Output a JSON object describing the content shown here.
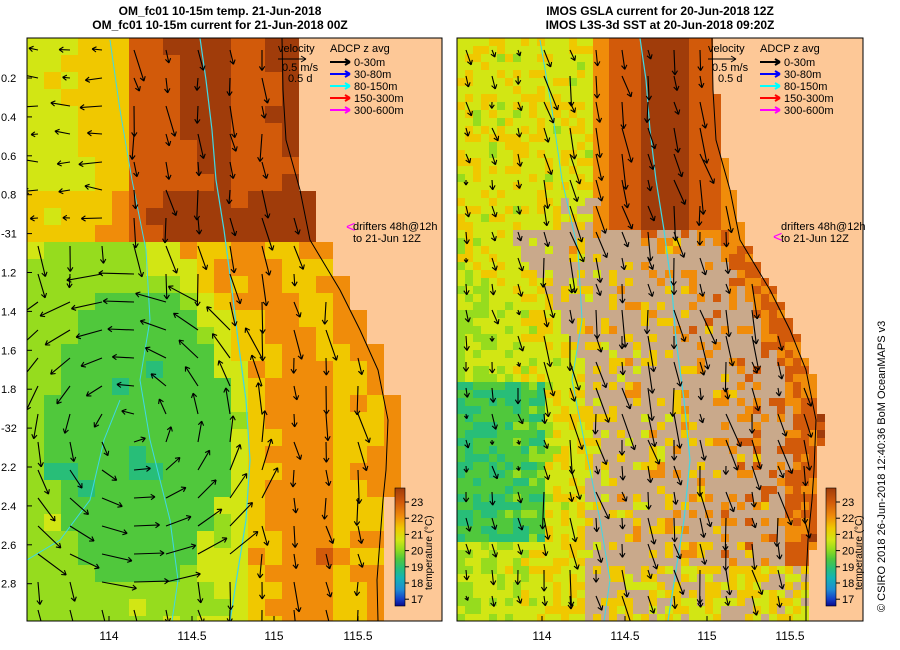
{
  "left_panel": {
    "title_lines": [
      "OM_fc01 10-15m temp. 21-Jun-2018",
      "OM_fc01 10-15m current for 21-Jun-2018 00Z"
    ],
    "legend": {
      "velocity_title": "velocity",
      "velocity_scale": "0.5 m/s",
      "velocity_time": "0.5 d",
      "adcp_title": "ADCP z avg",
      "adcp_items": [
        {
          "label": "0-30m",
          "color": "#000000"
        },
        {
          "label": "30-80m",
          "color": "#0000ff"
        },
        {
          "label": "80-150m",
          "color": "#00ffff"
        },
        {
          "label": "150-300m",
          "color": "#ff0000"
        },
        {
          "label": "300-600m",
          "color": "#ff00ff"
        }
      ],
      "drifters_line1": "drifters 48h@12h",
      "drifters_line2": "to 21-Jun 12Z",
      "drifters_color": "#ff00ff"
    },
    "colorbar": {
      "label": "temperature (°C)",
      "ticks": [
        "23",
        "22",
        "21",
        "20",
        "19",
        "18",
        "17"
      ]
    }
  },
  "right_panel": {
    "title_lines": [
      "IMOS GSLA current for 20-Jun-2018 12Z",
      "IMOS L3S-3d SST at 20-Jun-2018 09:20Z"
    ],
    "legend": {
      "velocity_title": "velocity",
      "velocity_scale": "0.5 m/s",
      "velocity_time": "0.5 d",
      "adcp_title": "ADCP z avg",
      "adcp_items": [
        {
          "label": "0-30m",
          "color": "#000000"
        },
        {
          "label": "30-80m",
          "color": "#0000ff"
        },
        {
          "label": "80-150m",
          "color": "#00ffff"
        },
        {
          "label": "150-300m",
          "color": "#ff0000"
        },
        {
          "label": "300-600m",
          "color": "#ff00ff"
        }
      ],
      "drifters_line1": "drifters 48h@12h",
      "drifters_line2": "to 21-Jun 12Z",
      "drifters_color": "#ff00ff"
    },
    "colorbar": {
      "label": "temperature (°C)",
      "ticks": [
        "23",
        "22",
        "21",
        "20",
        "19",
        "18",
        "17"
      ]
    }
  },
  "y_axis_labels": [
    "0.2",
    "0.4",
    "0.6",
    "0.8",
    "-31",
    "1.2",
    "1.4",
    "1.6",
    "1.8",
    "-32",
    "2.2",
    "2.4",
    "2.6",
    "2.8"
  ],
  "x_axis_labels": [
    "114",
    "114.5",
    "115",
    "115.5"
  ],
  "credit": "© CSIRO 2018   26-Jun-2018 12:40:36 BoM OceanMAPS v3",
  "colors": {
    "land": "#fdc897",
    "no_data": "#c9a98b",
    "coastline": "#000000",
    "bathymetry": "#3fd8e6"
  },
  "colorscale": [
    "#0a0a8c",
    "#1440c8",
    "#1e8cd2",
    "#14b4b4",
    "#28be78",
    "#50c83c",
    "#96dc1e",
    "#d2e614",
    "#f0c800",
    "#f08c0a",
    "#d25a0a",
    "#a03c0a"
  ]
}
